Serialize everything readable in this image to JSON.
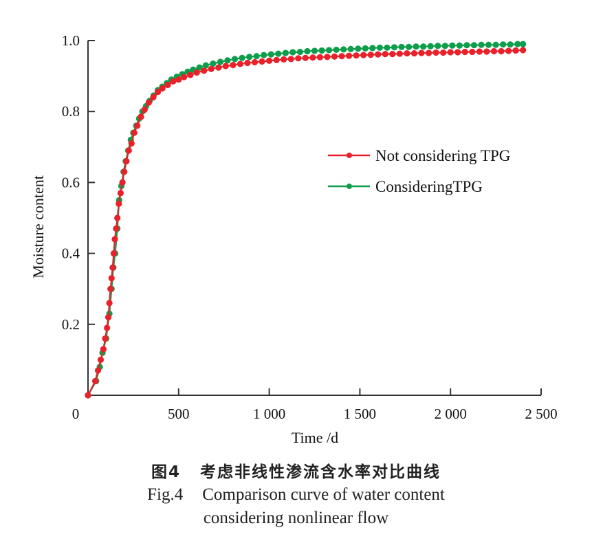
{
  "chart_data": {
    "type": "line",
    "title": "",
    "xlabel": "Time /d",
    "ylabel": "Moisture content",
    "xlim": [
      0,
      2500
    ],
    "ylim": [
      0,
      1.0
    ],
    "x_ticks": [
      0,
      500,
      1000,
      1500,
      2000,
      2500
    ],
    "x_tick_labels": [
      "0",
      "500",
      "1 000",
      "1 500",
      "2 000",
      "2 500"
    ],
    "y_ticks": [
      0.2,
      0.4,
      0.6,
      0.8,
      1.0
    ],
    "y_tick_labels": [
      "0.2",
      "0.4",
      "0.6",
      "0.8",
      "1.0"
    ],
    "grid": false,
    "legend_position": "center-right",
    "series": [
      {
        "name": "Not considering TPG",
        "color": "#e8212a",
        "marker": "circle",
        "x": [
          0,
          40,
          55,
          70,
          85,
          95,
          105,
          112,
          118,
          124,
          130,
          136,
          142,
          148,
          155,
          162,
          170,
          180,
          190,
          200,
          212,
          225,
          240,
          255,
          272,
          292,
          312,
          335,
          360,
          385,
          410,
          440,
          470,
          500,
          530,
          565,
          600,
          640,
          680,
          720,
          760,
          800,
          840,
          880,
          920,
          960,
          1000,
          1040,
          1080,
          1120,
          1160,
          1200,
          1240,
          1280,
          1320,
          1360,
          1400,
          1440,
          1480,
          1520,
          1560,
          1600,
          1640,
          1680,
          1720,
          1760,
          1800,
          1840,
          1880,
          1920,
          1960,
          2000,
          2040,
          2080,
          2120,
          2160,
          2200,
          2240,
          2280,
          2320,
          2360,
          2400
        ],
        "y": [
          0,
          0.04,
          0.07,
          0.1,
          0.13,
          0.16,
          0.19,
          0.22,
          0.26,
          0.3,
          0.33,
          0.36,
          0.4,
          0.44,
          0.47,
          0.5,
          0.54,
          0.57,
          0.6,
          0.63,
          0.66,
          0.69,
          0.71,
          0.74,
          0.76,
          0.785,
          0.805,
          0.825,
          0.84,
          0.855,
          0.865,
          0.875,
          0.885,
          0.89,
          0.897,
          0.903,
          0.91,
          0.915,
          0.92,
          0.924,
          0.928,
          0.931,
          0.934,
          0.937,
          0.939,
          0.941,
          0.943,
          0.945,
          0.947,
          0.948,
          0.95,
          0.951,
          0.952,
          0.953,
          0.954,
          0.955,
          0.956,
          0.957,
          0.958,
          0.959,
          0.96,
          0.961,
          0.962,
          0.962,
          0.963,
          0.964,
          0.964,
          0.965,
          0.965,
          0.966,
          0.966,
          0.967,
          0.967,
          0.968,
          0.968,
          0.969,
          0.969,
          0.97,
          0.97,
          0.971,
          0.972,
          0.973
        ]
      },
      {
        "name": "ConsideringTPG",
        "color": "#0e9e4b",
        "marker": "circle",
        "x": [
          0,
          45,
          65,
          80,
          100,
          118,
          130,
          140,
          150,
          162,
          172,
          184,
          196,
          208,
          222,
          236,
          250,
          266,
          282,
          300,
          320,
          340,
          362,
          385,
          410,
          435,
          460,
          490,
          520,
          550,
          580,
          615,
          650,
          690,
          730,
          770,
          810,
          850,
          890,
          930,
          970,
          1010,
          1050,
          1090,
          1130,
          1170,
          1210,
          1250,
          1290,
          1330,
          1370,
          1410,
          1450,
          1490,
          1530,
          1570,
          1610,
          1650,
          1690,
          1730,
          1770,
          1810,
          1850,
          1890,
          1930,
          1970,
          2010,
          2050,
          2090,
          2130,
          2170,
          2210,
          2250,
          2290,
          2330,
          2370,
          2400
        ],
        "y": [
          0,
          0.04,
          0.08,
          0.12,
          0.16,
          0.23,
          0.3,
          0.36,
          0.4,
          0.47,
          0.55,
          0.59,
          0.63,
          0.66,
          0.69,
          0.72,
          0.74,
          0.76,
          0.78,
          0.8,
          0.815,
          0.83,
          0.845,
          0.86,
          0.87,
          0.88,
          0.89,
          0.898,
          0.905,
          0.912,
          0.918,
          0.924,
          0.93,
          0.935,
          0.94,
          0.944,
          0.948,
          0.951,
          0.954,
          0.956,
          0.959,
          0.961,
          0.963,
          0.965,
          0.967,
          0.968,
          0.97,
          0.971,
          0.972,
          0.973,
          0.974,
          0.975,
          0.976,
          0.977,
          0.978,
          0.979,
          0.98,
          0.98,
          0.981,
          0.982,
          0.982,
          0.983,
          0.983,
          0.984,
          0.985,
          0.985,
          0.986,
          0.986,
          0.987,
          0.987,
          0.988,
          0.988,
          0.988,
          0.989,
          0.989,
          0.99,
          0.99
        ]
      }
    ]
  },
  "caption": {
    "cn_number": "图4",
    "cn_text": "考虑非线性渗流含水率对比曲线",
    "en_number": "Fig.4",
    "en_line1": "Comparison curve of water content",
    "en_line2": "considering nonlinear flow"
  }
}
